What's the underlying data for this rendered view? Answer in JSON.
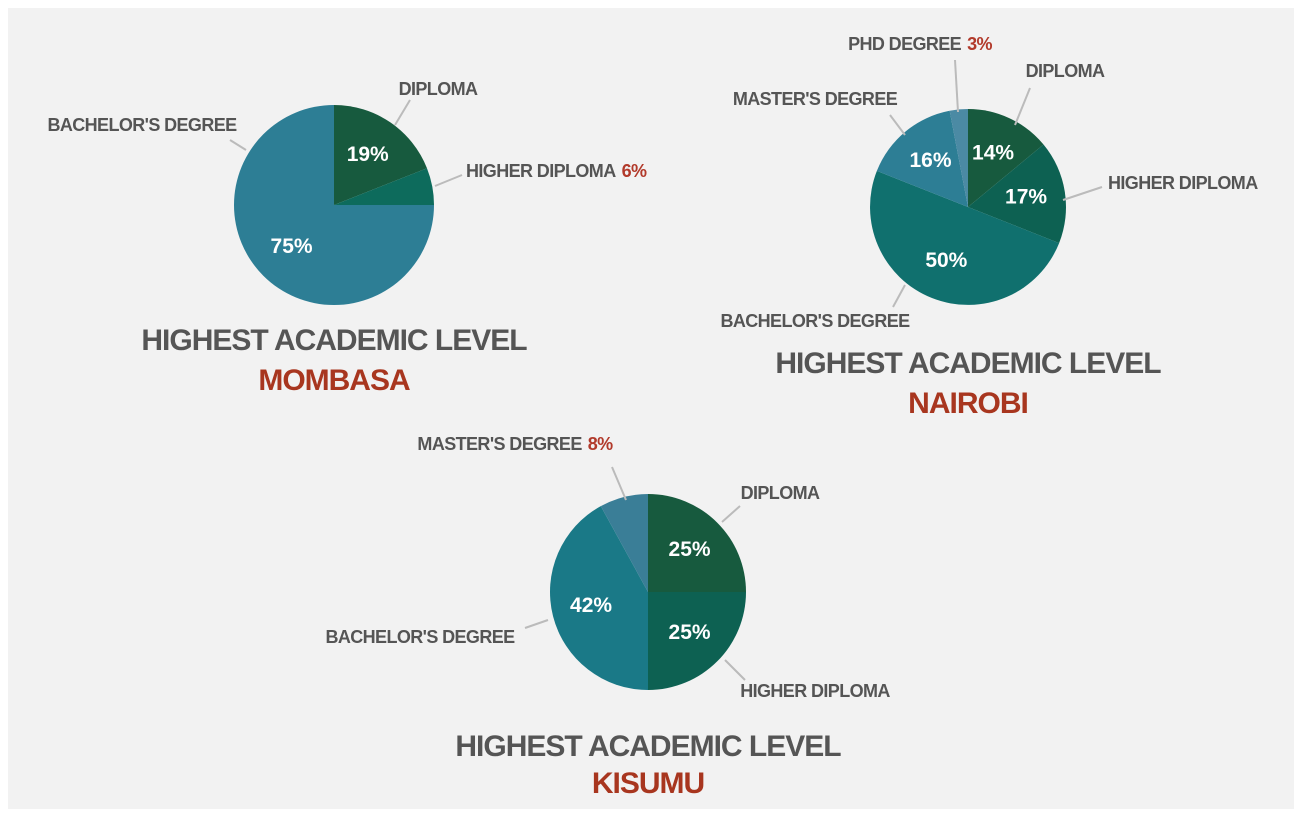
{
  "chart_data": [
    {
      "type": "pie",
      "title": "HIGHEST ACADEMIC LEVEL",
      "subtitle": "MOMBASA",
      "categories": [
        "DIPLOMA",
        "HIGHER DIPLOMA",
        "BACHELOR'S DEGREE"
      ],
      "values": [
        19,
        6,
        75
      ],
      "value_labels": [
        "19%",
        "6%",
        "75%"
      ],
      "colors": [
        "#175a3e",
        "#0d6b5c",
        "#2d7e95"
      ]
    },
    {
      "type": "pie",
      "title": "HIGHEST ACADEMIC LEVEL",
      "subtitle": "NAIROBI",
      "categories": [
        "DIPLOMA",
        "HIGHER DIPLOMA",
        "BACHELOR'S DEGREE",
        "MASTER'S DEGREE",
        "PHD DEGREE"
      ],
      "values": [
        14,
        17,
        50,
        16,
        3
      ],
      "value_labels": [
        "14%",
        "17%",
        "50%",
        "16%",
        "3%"
      ],
      "colors": [
        "#175a3e",
        "#0d6152",
        "#10706e",
        "#2d7e95",
        "#4b8aa4"
      ]
    },
    {
      "type": "pie",
      "title": "HIGHEST ACADEMIC LEVEL",
      "subtitle": "KISUMU",
      "categories": [
        "DIPLOMA",
        "HIGHER DIPLOMA",
        "BACHELOR'S DEGREE",
        "MASTER'S DEGREE"
      ],
      "values": [
        25,
        25,
        42,
        8
      ],
      "value_labels": [
        "25%",
        "25%",
        "42%",
        "8%"
      ],
      "colors": [
        "#175a3e",
        "#0d6152",
        "#1a7987",
        "#3a7e97"
      ]
    }
  ]
}
